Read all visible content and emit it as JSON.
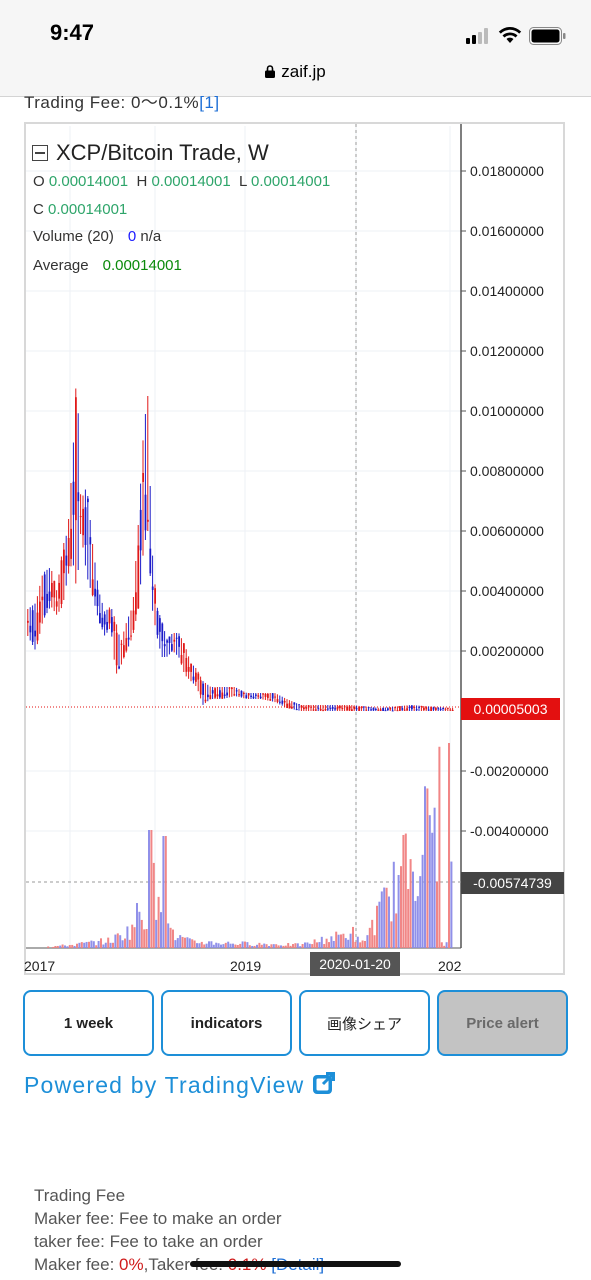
{
  "status": {
    "time": "9:47",
    "url": "zaif.jp"
  },
  "page": {
    "cut_text": "Trading Fee: 0〜0.1%",
    "cut_link": "[1]"
  },
  "chart_header": {
    "title": "XCP/Bitcoin Trade, W",
    "o_label": "O",
    "o_value": "0.00014001",
    "h_label": "H",
    "h_value": "0.00014001",
    "l_label": "L",
    "l_value": "0.00014001",
    "c_label": "C",
    "c_value": "0.00014001",
    "volume_label": "Volume (20)",
    "volume_value": "0",
    "volume_na": "n/a",
    "average_label": "Average",
    "average_value": "0.00014001"
  },
  "chart_data": {
    "type": "candlestick",
    "title": "XCP/Bitcoin Trade, W",
    "interval": "W",
    "y_axis_labels": [
      "0.01800000",
      "0.01600000",
      "0.01400000",
      "0.01200000",
      "0.01000000",
      "0.00800000",
      "0.00600000",
      "0.00400000",
      "0.00200000",
      "-0.00200000",
      "-0.00400000"
    ],
    "y_axis_values": [
      0.018,
      0.016,
      0.014,
      0.012,
      0.01,
      0.008,
      0.006,
      0.004,
      0.002,
      -0.002,
      -0.004
    ],
    "x_axis_labels": [
      "2017",
      "2019",
      "202"
    ],
    "last_price_label": "0.00005003",
    "last_price": 5.003e-05,
    "crosshair_price_label": "-0.00574739",
    "crosshair_date_label": "2020-01-20",
    "price_series_approx": [
      {
        "period": "early 2017",
        "low": 0.0025,
        "high": 0.0046
      },
      {
        "period": "mid 2017 peak",
        "low": 0.003,
        "high": 0.0115
      },
      {
        "period": "late 2017 / early 2018 peak",
        "low": 0.003,
        "high": 0.0105
      },
      {
        "period": "mid 2018",
        "low": 0.0008,
        "high": 0.0026
      },
      {
        "period": "2019",
        "low": 0.0,
        "high": 0.0008
      },
      {
        "period": "2020",
        "low": 4e-05,
        "high": 0.0002
      }
    ],
    "up_color": "#1b1bc8",
    "down_color": "#e01818",
    "volume_colors": [
      "#8a8ae8",
      "#f08080"
    ]
  },
  "toolbar": {
    "interval_label": "1 week",
    "indicators_label": "indicators",
    "share_label": "画像シェア",
    "alert_label": "Price alert"
  },
  "powered_by": "Powered by TradingView",
  "fees": {
    "heading": "Trading Fee",
    "maker_desc": "Maker fee: Fee to make an order",
    "taker_desc": "taker fee: Fee to take an order",
    "maker_prefix": "Maker fee: ",
    "maker_value": "0%",
    "taker_prefix": ",Taker fee: ",
    "taker_value": "0.1%",
    "detail_link": "[Detail]"
  },
  "colors": {
    "accent": "#1d8fd8",
    "price_tag": "#e31010",
    "up": "#2ea56a"
  }
}
